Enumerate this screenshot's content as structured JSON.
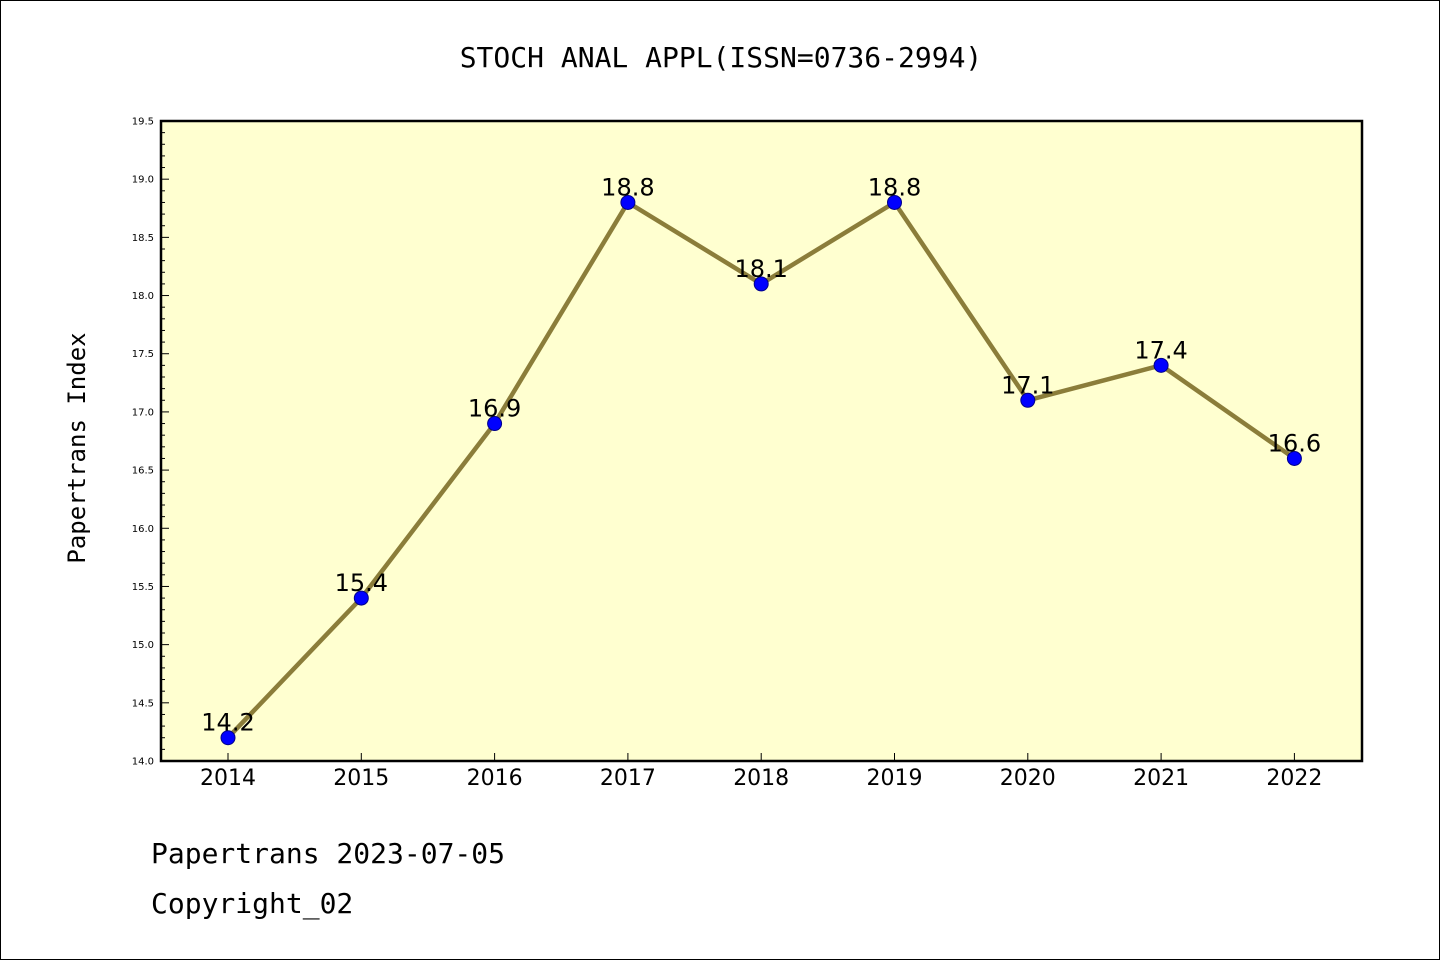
{
  "chart_data": {
    "type": "line",
    "title": "STOCH ANAL APPL(ISSN=0736-2994)",
    "xlabel": "",
    "ylabel": "Papertrans Index",
    "categories": [
      "2014",
      "2015",
      "2016",
      "2017",
      "2018",
      "2019",
      "2020",
      "2021",
      "2022"
    ],
    "series": [
      {
        "values": [
          14.2,
          15.4,
          16.9,
          18.8,
          18.1,
          18.8,
          17.1,
          17.4,
          16.6
        ],
        "data_labels": [
          "14.2",
          "15.4",
          "16.9",
          "18.8",
          "18.1",
          "18.8",
          "17.1",
          "17.4",
          "16.6"
        ]
      }
    ],
    "ylim": [
      14.0,
      19.5
    ],
    "y_ticks": [
      "14.0",
      "14.5",
      "15.0",
      "15.5",
      "16.0",
      "16.5",
      "17.0",
      "17.5",
      "18.0",
      "18.5",
      "19.0",
      "19.5"
    ],
    "grid": false,
    "legend": "none",
    "colors": {
      "plot_background": "#ffffd0",
      "line": "#8b7d3a",
      "marker": "#0000ff"
    }
  },
  "footer": {
    "date_text": "Papertrans 2023-07-05",
    "copyright_text": "Copyright_02"
  }
}
